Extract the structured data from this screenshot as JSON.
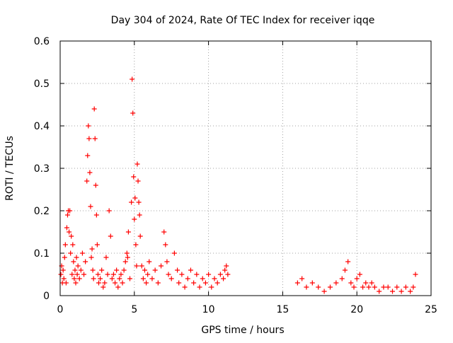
{
  "chart_data": {
    "type": "scatter",
    "title": "Day 304 of 2024, Rate Of TEC Index for receiver iqqe",
    "xlabel": "GPS time / hours",
    "ylabel": "ROTI / TECUs",
    "xlim": [
      0,
      25
    ],
    "ylim": [
      0,
      0.6
    ],
    "x_ticks": [
      0,
      5,
      10,
      15,
      20,
      25
    ],
    "y_ticks": [
      0,
      0.1,
      0.2,
      0.3,
      0.4,
      0.5,
      0.6
    ],
    "x_tick_labels": [
      "0",
      "5",
      "10",
      "15",
      "20",
      "25"
    ],
    "y_tick_labels": [
      "0",
      "0.1",
      "0.2",
      "0.3",
      "0.4",
      "0.5",
      "0.6"
    ],
    "grid": true,
    "marker": "+",
    "series": [
      {
        "name": "ROTI",
        "color": "#ff0000",
        "points": [
          [
            0.05,
            0.05
          ],
          [
            0.1,
            0.07
          ],
          [
            0.15,
            0.03
          ],
          [
            0.2,
            0.06
          ],
          [
            0.25,
            0.04
          ],
          [
            0.3,
            0.09
          ],
          [
            0.35,
            0.12
          ],
          [
            0.4,
            0.03
          ],
          [
            0.45,
            0.16
          ],
          [
            0.5,
            0.19
          ],
          [
            0.55,
            0.2
          ],
          [
            0.6,
            0.15
          ],
          [
            0.65,
            0.2
          ],
          [
            0.7,
            0.1
          ],
          [
            0.75,
            0.14
          ],
          [
            0.8,
            0.05
          ],
          [
            0.85,
            0.12
          ],
          [
            0.9,
            0.08
          ],
          [
            0.95,
            0.04
          ],
          [
            1.0,
            0.06
          ],
          [
            1.05,
            0.03
          ],
          [
            1.1,
            0.09
          ],
          [
            1.15,
            0.05
          ],
          [
            1.2,
            0.07
          ],
          [
            1.3,
            0.04
          ],
          [
            1.4,
            0.06
          ],
          [
            1.5,
            0.1
          ],
          [
            1.6,
            0.05
          ],
          [
            1.7,
            0.08
          ],
          [
            1.8,
            0.27
          ],
          [
            1.85,
            0.33
          ],
          [
            1.9,
            0.4
          ],
          [
            1.95,
            0.37
          ],
          [
            2.0,
            0.29
          ],
          [
            2.05,
            0.21
          ],
          [
            2.1,
            0.09
          ],
          [
            2.15,
            0.11
          ],
          [
            2.2,
            0.06
          ],
          [
            2.25,
            0.04
          ],
          [
            2.3,
            0.44
          ],
          [
            2.35,
            0.37
          ],
          [
            2.4,
            0.26
          ],
          [
            2.45,
            0.19
          ],
          [
            2.5,
            0.12
          ],
          [
            2.55,
            0.05
          ],
          [
            2.6,
            0.03
          ],
          [
            2.7,
            0.04
          ],
          [
            2.8,
            0.06
          ],
          [
            2.9,
            0.02
          ],
          [
            3.0,
            0.03
          ],
          [
            3.1,
            0.09
          ],
          [
            3.2,
            0.05
          ],
          [
            3.3,
            0.2
          ],
          [
            3.4,
            0.14
          ],
          [
            3.5,
            0.04
          ],
          [
            3.6,
            0.05
          ],
          [
            3.7,
            0.03
          ],
          [
            3.8,
            0.06
          ],
          [
            3.9,
            0.02
          ],
          [
            4.0,
            0.04
          ],
          [
            4.1,
            0.05
          ],
          [
            4.2,
            0.03
          ],
          [
            4.3,
            0.06
          ],
          [
            4.4,
            0.08
          ],
          [
            4.5,
            0.1
          ],
          [
            4.55,
            0.09
          ],
          [
            4.6,
            0.15
          ],
          [
            4.7,
            0.04
          ],
          [
            4.8,
            0.22
          ],
          [
            4.85,
            0.51
          ],
          [
            4.9,
            0.43
          ],
          [
            4.95,
            0.28
          ],
          [
            5.0,
            0.18
          ],
          [
            5.05,
            0.23
          ],
          [
            5.1,
            0.12
          ],
          [
            5.15,
            0.07
          ],
          [
            5.2,
            0.31
          ],
          [
            5.25,
            0.27
          ],
          [
            5.3,
            0.22
          ],
          [
            5.35,
            0.19
          ],
          [
            5.4,
            0.14
          ],
          [
            5.5,
            0.07
          ],
          [
            5.6,
            0.04
          ],
          [
            5.7,
            0.06
          ],
          [
            5.8,
            0.03
          ],
          [
            5.9,
            0.05
          ],
          [
            6.0,
            0.08
          ],
          [
            6.2,
            0.04
          ],
          [
            6.4,
            0.06
          ],
          [
            6.6,
            0.03
          ],
          [
            6.8,
            0.07
          ],
          [
            7.0,
            0.15
          ],
          [
            7.1,
            0.12
          ],
          [
            7.2,
            0.08
          ],
          [
            7.3,
            0.05
          ],
          [
            7.5,
            0.04
          ],
          [
            7.7,
            0.1
          ],
          [
            7.9,
            0.06
          ],
          [
            8.0,
            0.03
          ],
          [
            8.2,
            0.05
          ],
          [
            8.4,
            0.02
          ],
          [
            8.6,
            0.04
          ],
          [
            8.8,
            0.06
          ],
          [
            9.0,
            0.03
          ],
          [
            9.2,
            0.05
          ],
          [
            9.4,
            0.02
          ],
          [
            9.6,
            0.04
          ],
          [
            9.8,
            0.03
          ],
          [
            10.0,
            0.05
          ],
          [
            10.2,
            0.02
          ],
          [
            10.4,
            0.04
          ],
          [
            10.6,
            0.03
          ],
          [
            10.8,
            0.05
          ],
          [
            11.0,
            0.04
          ],
          [
            11.1,
            0.06
          ],
          [
            11.2,
            0.07
          ],
          [
            11.3,
            0.05
          ],
          [
            16.0,
            0.03
          ],
          [
            16.3,
            0.04
          ],
          [
            16.6,
            0.02
          ],
          [
            17.0,
            0.03
          ],
          [
            17.4,
            0.02
          ],
          [
            17.8,
            0.01
          ],
          [
            18.2,
            0.02
          ],
          [
            18.6,
            0.03
          ],
          [
            19.0,
            0.04
          ],
          [
            19.2,
            0.06
          ],
          [
            19.4,
            0.08
          ],
          [
            19.6,
            0.03
          ],
          [
            19.8,
            0.02
          ],
          [
            20.0,
            0.04
          ],
          [
            20.2,
            0.05
          ],
          [
            20.4,
            0.02
          ],
          [
            20.6,
            0.03
          ],
          [
            20.8,
            0.02
          ],
          [
            21.0,
            0.03
          ],
          [
            21.2,
            0.02
          ],
          [
            21.5,
            0.01
          ],
          [
            21.8,
            0.02
          ],
          [
            22.1,
            0.02
          ],
          [
            22.4,
            0.01
          ],
          [
            22.7,
            0.02
          ],
          [
            23.0,
            0.01
          ],
          [
            23.3,
            0.02
          ],
          [
            23.6,
            0.01
          ],
          [
            23.8,
            0.02
          ],
          [
            23.95,
            0.05
          ]
        ]
      }
    ]
  }
}
